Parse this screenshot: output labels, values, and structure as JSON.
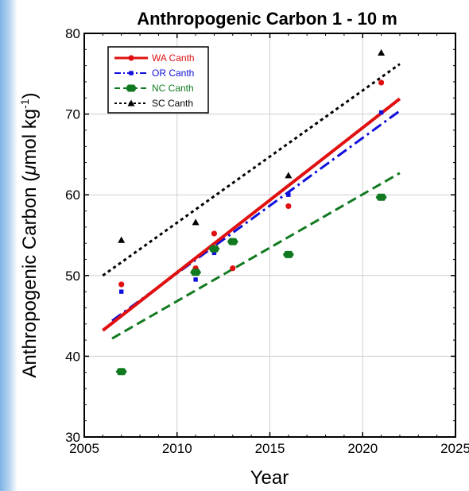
{
  "chart_data": {
    "type": "scatter",
    "title": "Anthropogenic Carbon 1 - 10 m",
    "xlabel": "Year",
    "ylabel_main": "Anthropogenic Carbon (",
    "ylabel_mu": "μ",
    "ylabel_rest": "mol kg",
    "ylabel_sup": "-1",
    "ylabel_close": ")",
    "xlim": [
      2005,
      2025
    ],
    "ylim": [
      30,
      80
    ],
    "xticks": [
      2005,
      2010,
      2015,
      2020,
      2025
    ],
    "yticks": [
      30,
      40,
      50,
      60,
      70,
      80
    ],
    "grid": true,
    "legend_position": "top-left",
    "series": [
      {
        "name": "WA Canth",
        "color": "#e01010",
        "marker": "circle",
        "line_style": "solid",
        "points": [
          {
            "x": 2007,
            "y": 48.9
          },
          {
            "x": 2011,
            "y": 50.9
          },
          {
            "x": 2012,
            "y": 55.2
          },
          {
            "x": 2013,
            "y": 50.9
          },
          {
            "x": 2016,
            "y": 58.6
          },
          {
            "x": 2021,
            "y": 73.9
          }
        ],
        "fit": {
          "x": [
            2006,
            2022
          ],
          "y": [
            43.2,
            71.9
          ]
        }
      },
      {
        "name": "OR Canth",
        "color": "#1010dd",
        "marker": "square",
        "line_style": "dashdot",
        "points": [
          {
            "x": 2007,
            "y": 48.0
          },
          {
            "x": 2011,
            "y": 49.5
          },
          {
            "x": 2012,
            "y": 52.8
          },
          {
            "x": 2016,
            "y": 60.0
          },
          {
            "x": 2021,
            "y": 70.2
          }
        ],
        "fit": {
          "x": [
            2006.5,
            2022
          ],
          "y": [
            44.4,
            70.4
          ]
        }
      },
      {
        "name": "NC Canth",
        "color": "#117a20",
        "marker": "hexagon",
        "line_style": "dashed",
        "points": [
          {
            "x": 2007,
            "y": 38.1
          },
          {
            "x": 2011,
            "y": 50.4
          },
          {
            "x": 2012,
            "y": 53.3
          },
          {
            "x": 2013,
            "y": 54.2
          },
          {
            "x": 2016,
            "y": 52.6
          },
          {
            "x": 2021,
            "y": 59.7
          }
        ],
        "fit": {
          "x": [
            2006.5,
            2022
          ],
          "y": [
            42.2,
            62.7
          ]
        }
      },
      {
        "name": "SC Canth",
        "color": "#000000",
        "marker": "triangle",
        "line_style": "dotted",
        "points": [
          {
            "x": 2007,
            "y": 54.4
          },
          {
            "x": 2011,
            "y": 56.6
          },
          {
            "x": 2016,
            "y": 62.4
          },
          {
            "x": 2021,
            "y": 77.6
          }
        ],
        "fit": {
          "x": [
            2006,
            2022
          ],
          "y": [
            50.0,
            76.2
          ]
        }
      }
    ]
  }
}
